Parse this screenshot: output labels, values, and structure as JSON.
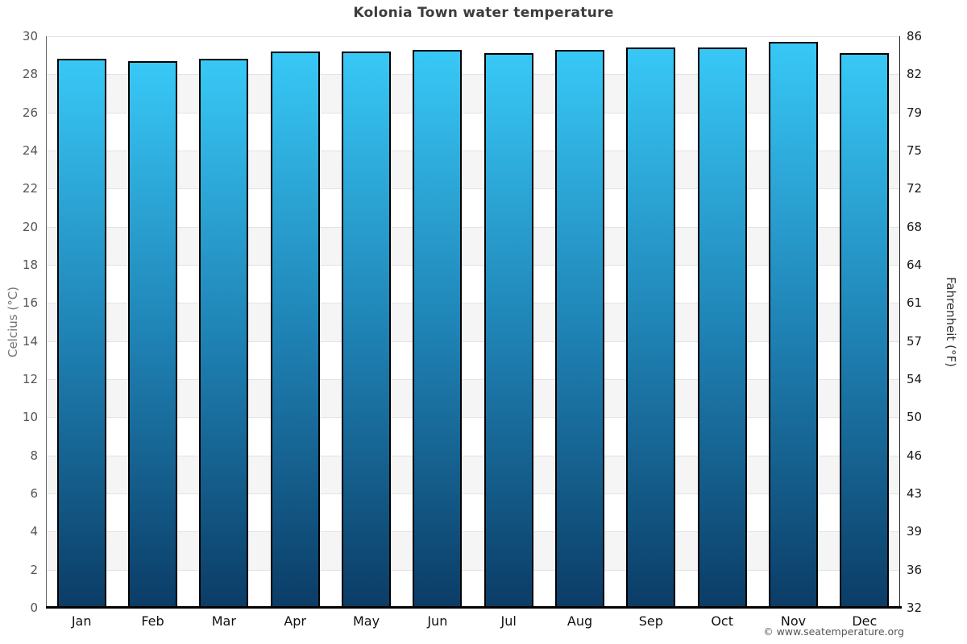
{
  "chart_data": {
    "type": "bar",
    "title": "Kolonia Town water temperature",
    "categories": [
      "Jan",
      "Feb",
      "Mar",
      "Apr",
      "May",
      "Jun",
      "Jul",
      "Aug",
      "Sep",
      "Oct",
      "Nov",
      "Dec"
    ],
    "values": [
      28.8,
      28.7,
      28.8,
      29.2,
      29.2,
      29.3,
      29.1,
      29.3,
      29.4,
      29.4,
      29.7,
      29.1
    ],
    "ylabel_left": "Celcius (°C)",
    "ylabel_right": "Fahrenheit (°F)",
    "ylim": [
      0,
      30
    ],
    "celsius_ticks": [
      "30",
      "28",
      "26",
      "24",
      "22",
      "20",
      "18",
      "16",
      "14",
      "12",
      "10",
      "8",
      "6",
      "4",
      "2",
      "0"
    ],
    "fahrenheit_ticks": [
      "86",
      "82",
      "79",
      "75",
      "72",
      "68",
      "64",
      "61",
      "57",
      "54",
      "50",
      "46",
      "43",
      "39",
      "36",
      "32"
    ],
    "grid": "horizontal gridlines every 2°C with alternating white/gray bands",
    "legend_position": "none",
    "colors": {
      "bar_gradient_top": "#38c8f6",
      "bar_gradient_mid": "#1f83b5",
      "bar_gradient_bottom": "#0b3c66",
      "bar_border": "#000000",
      "band_gray": "#f5f5f5",
      "gridline": "#e3e3e3",
      "title_text": "#3c3c3c",
      "left_tick_text": "#555555",
      "right_tick_text": "#1a1a1a"
    }
  },
  "footer": {
    "copyright": "© www.seatemperature.org"
  }
}
